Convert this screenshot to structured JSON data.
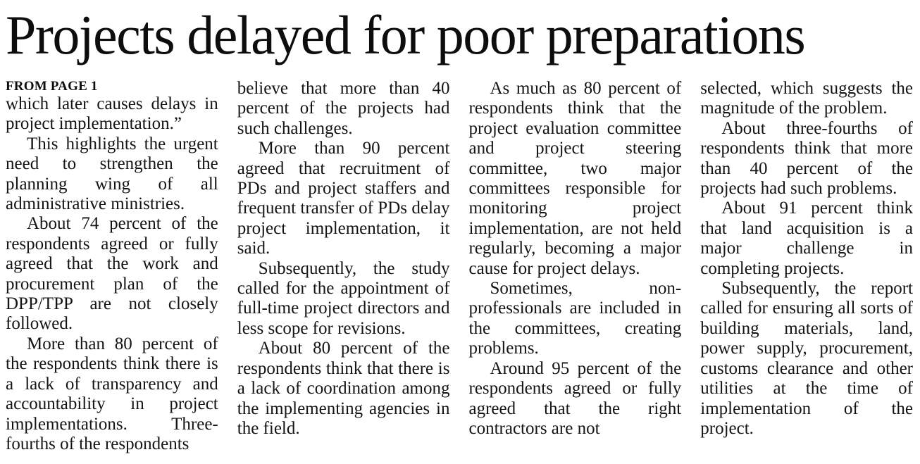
{
  "article": {
    "headline": "Projects delayed for poor preparations",
    "kicker": "FROM PAGE 1",
    "text_color": "#121212",
    "background_color": "#ffffff",
    "columns": [
      {
        "paragraphs": [
          {
            "indent": false,
            "text": "which later causes delays in project implementation.”"
          },
          {
            "indent": true,
            "text": "This highlights the urgent need to strengthen the planning wing of all administrative ministries."
          },
          {
            "indent": true,
            "text": "About 74 percent of the respondents agreed or fully agreed that the work and procurement plan of the DPP/TPP are not closely followed."
          },
          {
            "indent": true,
            "text": "More than 80 percent of the respondents think there is a lack of transparency and accountability in project implementations. Three-fourths of the respondents"
          }
        ]
      },
      {
        "paragraphs": [
          {
            "indent": false,
            "text": "believe that more than 40 percent of the projects had such challenges."
          },
          {
            "indent": true,
            "text": "More than 90 percent agreed that recruitment of PDs and project staffers and frequent transfer of PDs delay project implementation, it said."
          },
          {
            "indent": true,
            "text": "Subsequently, the study called for the appointment of full-time project directors and less scope for revisions."
          },
          {
            "indent": true,
            "text": "About 80 percent of the respondents think that there is a lack of coordination among the implementing agencies in the field."
          }
        ]
      },
      {
        "paragraphs": [
          {
            "indent": true,
            "text": "As much as 80 percent of respondents think that the project evaluation committee and project steering committee, two major committees responsible for monitoring project implementation, are not held regularly, becoming a major cause for project delays."
          },
          {
            "indent": true,
            "text": "Sometimes, non-professionals are included in the committees, creating problems."
          },
          {
            "indent": true,
            "text": "Around 95 percent of the respondents agreed or fully agreed that the right contractors are not"
          }
        ]
      },
      {
        "paragraphs": [
          {
            "indent": false,
            "text": "selected, which suggests the magnitude of the problem."
          },
          {
            "indent": true,
            "text": "About three-fourths of respondents think that more than 40 percent of the projects had such problems."
          },
          {
            "indent": true,
            "text": "About 91 percent think that land acquisition is a major challenge in completing projects."
          },
          {
            "indent": true,
            "text": "Subsequently, the report called for ensuring all sorts of building materials, land, power supply, procurement, customs clearance and other utilities at the time of implementation of the project."
          }
        ]
      }
    ]
  }
}
